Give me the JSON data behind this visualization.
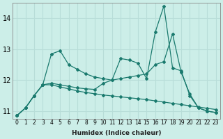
{
  "xlabel": "Humidex (Indice chaleur)",
  "background_color": "#cceee8",
  "grid_color": "#b8ddd8",
  "line_color": "#1a7a6e",
  "xlim": [
    -0.5,
    23.5
  ],
  "ylim": [
    10.75,
    14.5
  ],
  "yticks": [
    11,
    12,
    13,
    14
  ],
  "xticks": [
    0,
    1,
    2,
    3,
    4,
    5,
    6,
    7,
    8,
    9,
    10,
    11,
    12,
    13,
    14,
    15,
    16,
    17,
    18,
    19,
    20,
    21,
    22,
    23
  ],
  "series1_y": [
    10.85,
    11.1,
    11.5,
    11.85,
    12.85,
    12.95,
    12.5,
    12.35,
    12.2,
    12.1,
    12.05,
    12.0,
    12.7,
    12.65,
    12.55,
    12.05,
    13.55,
    14.4,
    12.4,
    12.3,
    11.5,
    11.1,
    11.0,
    10.95
  ],
  "series2_y": [
    10.85,
    11.1,
    11.5,
    11.85,
    11.9,
    11.85,
    11.8,
    11.75,
    11.72,
    11.7,
    11.9,
    12.0,
    12.05,
    12.1,
    12.15,
    12.2,
    12.5,
    12.6,
    13.5,
    12.25,
    11.55,
    11.1,
    11.0,
    10.95
  ],
  "series3_y": [
    10.85,
    11.1,
    11.5,
    11.85,
    11.85,
    11.78,
    11.72,
    11.65,
    11.6,
    11.56,
    11.52,
    11.49,
    11.46,
    11.43,
    11.4,
    11.37,
    11.33,
    11.29,
    11.25,
    11.21,
    11.17,
    11.13,
    11.09,
    11.05
  ]
}
